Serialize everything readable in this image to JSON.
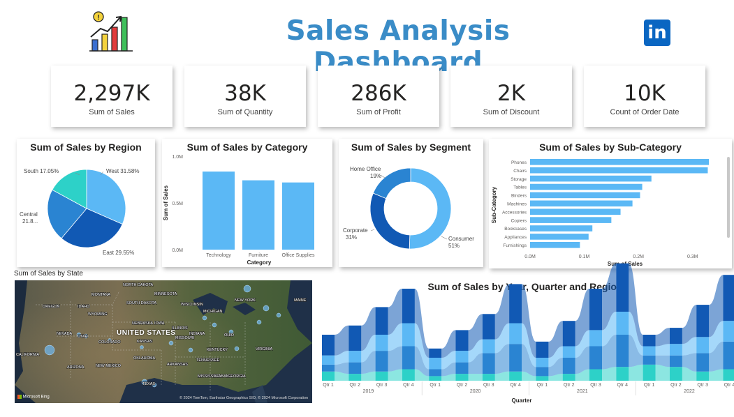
{
  "header": {
    "title": "Sales Analysis Dashboard",
    "logo_icon": "bar-chart-growth-icon",
    "social_icon": "linkedin-icon",
    "social_label": "in"
  },
  "kpis": [
    {
      "value": "2,297K",
      "label": "Sum of Sales"
    },
    {
      "value": "38K",
      "label": "Sum of Quantity"
    },
    {
      "value": "286K",
      "label": "Sum of Profit"
    },
    {
      "value": "2K",
      "label": "Sum of Discount"
    },
    {
      "value": "10K",
      "label": "Count of Order Date"
    }
  ],
  "colors": {
    "accent": "#3a8cc7",
    "light_blue": "#5bb8f5",
    "mid_blue": "#2a84d2",
    "dark_blue": "#1159b4",
    "teal": "#2dd1c8"
  },
  "chart_data": [
    {
      "type": "pie",
      "title": "Sum of Sales by Region",
      "categories": [
        "West",
        "East",
        "Central",
        "South"
      ],
      "values": [
        31.58,
        29.55,
        21.8,
        17.05
      ],
      "data_labels": [
        "West 31.58%",
        "East 29.55%",
        "Central 21.8...",
        "South 17.05%"
      ],
      "colors": [
        "#5bb8f5",
        "#1159b4",
        "#2a84d2",
        "#2dd1c8"
      ]
    },
    {
      "type": "bar",
      "title": "Sum of Sales by Category",
      "categories": [
        "Technology",
        "Furniture",
        "Office Supplies"
      ],
      "values": [
        0.836,
        0.742,
        0.719
      ],
      "xlabel": "Category",
      "ylabel": "Sum of Sales",
      "ylim": [
        0,
        1.0
      ],
      "yticks": [
        "0.0M",
        "0.5M",
        "1.0M"
      ],
      "ytick_values": [
        0,
        0.5,
        1.0
      ]
    },
    {
      "type": "pie",
      "title": "Sum of Sales by Segment",
      "categories": [
        "Consumer",
        "Corporate",
        "Home Office"
      ],
      "values": [
        51,
        31,
        19
      ],
      "data_labels": [
        [
          "Consumer",
          "51%"
        ],
        [
          "Corporate",
          "31%"
        ],
        [
          "Home Office",
          "19%"
        ]
      ],
      "colors": [
        "#5bb8f5",
        "#1159b4",
        "#2a84d2"
      ]
    },
    {
      "type": "bar",
      "title": "Sum of Sales by Sub-Category",
      "categories": [
        "Phones",
        "Chairs",
        "Storage",
        "Tables",
        "Binders",
        "Machines",
        "Accessories",
        "Copiers",
        "Bookcases",
        "Appliances",
        "Furnishings"
      ],
      "values": [
        0.33,
        0.328,
        0.224,
        0.207,
        0.203,
        0.189,
        0.167,
        0.15,
        0.115,
        0.108,
        0.092
      ],
      "xlabel": "Sum of Sales",
      "ylabel": "Sub-Category",
      "xlim": [
        0,
        0.33
      ],
      "xticks": [
        "0.0M",
        "0.1M",
        "0.2M",
        "0.3M"
      ],
      "xtick_values": [
        0,
        0.1,
        0.2,
        0.3
      ]
    },
    {
      "type": "area",
      "title": "Sum of Sales by Year, Quarter and Region",
      "xlabel": "Quarter",
      "categories": [
        "Qtr 1",
        "Qtr 2",
        "Qtr 3",
        "Qtr 4",
        "Qtr 1",
        "Qtr 2",
        "Qtr 3",
        "Qtr 4",
        "Qtr 1",
        "Qtr 2",
        "Qtr 3",
        "Qtr 4",
        "Qtr 1",
        "Qtr 2",
        "Qtr 3",
        "Qtr 4"
      ],
      "years": [
        "2019",
        "2020",
        "2021",
        "2022"
      ],
      "series": [
        {
          "values": [
            18,
            22,
            24,
            30,
            8,
            18,
            22,
            34,
            14,
            22,
            36,
            42,
            10,
            14,
            28,
            40
          ]
        },
        {
          "values": [
            8,
            10,
            14,
            20,
            10,
            10,
            12,
            18,
            8,
            10,
            14,
            20,
            8,
            10,
            14,
            18
          ]
        },
        {
          "values": [
            6,
            10,
            18,
            20,
            6,
            10,
            18,
            24,
            8,
            14,
            20,
            28,
            8,
            10,
            16,
            24
          ]
        },
        {
          "values": [
            8,
            6,
            8,
            10,
            4,
            6,
            6,
            8,
            4,
            6,
            10,
            12,
            14,
            12,
            8,
            10
          ]
        }
      ],
      "colors": [
        "#1159b4",
        "#5bb8f5",
        "#2a84d2",
        "#2dd1c8"
      ]
    }
  ],
  "map": {
    "title": "Sum of Sales by State",
    "country_label": "UNITED STATES",
    "attribution": "© 2024 TomTom, Earthstar Geographics SIO, © 2024 Microsoft Corporation",
    "brand": "Microsoft Bing",
    "state_labels": [
      {
        "name": "NORTH DAKOTA"
      },
      {
        "name": "MINNESOTA"
      },
      {
        "name": "OREGON"
      },
      {
        "name": "IDAHO"
      },
      {
        "name": "SOUTH DAKOTA"
      },
      {
        "name": "WISCONSIN"
      },
      {
        "name": "WYOMING"
      },
      {
        "name": "IOWA"
      },
      {
        "name": "NEBRASKA"
      },
      {
        "name": "NEVADA"
      },
      {
        "name": "UTAH"
      },
      {
        "name": "COLORADO"
      },
      {
        "name": "KANSAS"
      },
      {
        "name": "MISSOURI"
      },
      {
        "name": "CALIFORNIA"
      },
      {
        "name": "ARIZONA"
      },
      {
        "name": "NEW MEXICO"
      },
      {
        "name": "OKLAHOMA"
      },
      {
        "name": "ARKANSAS"
      },
      {
        "name": "TEXAS"
      },
      {
        "name": "MISSISSIPPI"
      },
      {
        "name": "ALABAMA"
      },
      {
        "name": "GEORGIA"
      },
      {
        "name": "KENTUCKY"
      },
      {
        "name": "TENNESSEE"
      },
      {
        "name": "MICHIGAN"
      },
      {
        "name": "OHIO"
      },
      {
        "name": "VIRGINIA"
      },
      {
        "name": "NEW YORK"
      },
      {
        "name": "MAINE"
      },
      {
        "name": "ILLINOIS"
      },
      {
        "name": "INDIANA"
      },
      {
        "name": "MONTANA"
      }
    ]
  }
}
